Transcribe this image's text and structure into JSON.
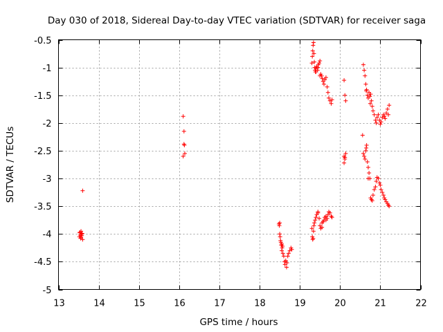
{
  "chart_data": {
    "type": "scatter",
    "title": "Day 030 of 2018, Sidereal Day-to-day VTEC variation (SDTVAR) for receiver saga",
    "xlabel": "GPS time / hours",
    "ylabel": "SDTVAR / TECUs",
    "xlim": [
      13,
      22
    ],
    "ylim": [
      -5,
      -0.5
    ],
    "xticks": [
      13,
      14,
      15,
      16,
      17,
      18,
      19,
      20,
      21,
      22
    ],
    "yticks": [
      -5,
      -4.5,
      -4,
      -3.5,
      -3,
      -2.5,
      -2,
      -1.5,
      -1,
      -0.5
    ],
    "xtick_labels": [
      "13",
      "14",
      "15",
      "16",
      "17",
      "18",
      "19",
      "20",
      "21",
      "22"
    ],
    "ytick_labels": [
      "-5",
      "-4.5",
      "-4",
      "-3.5",
      "-3",
      "-2.5",
      "-2",
      "-1.5",
      "-1",
      "-0.5"
    ],
    "grid": true,
    "marker": "+",
    "marker_color": "#ff0000",
    "series": [
      {
        "name": "SDTVAR",
        "x": [
          13.52,
          13.53,
          13.54,
          13.55,
          13.56,
          13.57,
          13.58,
          13.6,
          13.53,
          13.56,
          13.59,
          13.6,
          16.1,
          16.12,
          16.13,
          16.14,
          16.1,
          16.12,
          18.48,
          18.49,
          18.5,
          18.51,
          18.52,
          18.53,
          18.54,
          18.55,
          18.56,
          18.57,
          18.58,
          18.6,
          18.62,
          18.63,
          18.65,
          18.67,
          18.68,
          18.7,
          18.72,
          18.75,
          18.78,
          18.8,
          18.5,
          18.55,
          19.3,
          19.31,
          19.32,
          19.33,
          19.34,
          19.35,
          19.36,
          19.37,
          19.38,
          19.39,
          19.4,
          19.42,
          19.44,
          19.46,
          19.48,
          19.5,
          19.52,
          19.54,
          19.56,
          19.58,
          19.6,
          19.62,
          19.65,
          19.68,
          19.7,
          19.72,
          19.75,
          19.78,
          19.8,
          19.4,
          19.45,
          19.5,
          19.3,
          19.31,
          19.32,
          19.33,
          19.34,
          19.35,
          19.36,
          19.38,
          19.4,
          19.42,
          19.45,
          19.48,
          19.5,
          19.52,
          19.55,
          19.58,
          19.6,
          19.62,
          19.65,
          19.68,
          19.7,
          19.72,
          19.75,
          19.78,
          19.8,
          19.45,
          19.55,
          19.65,
          20.1,
          20.12,
          20.14,
          20.1,
          20.12,
          20.14,
          20.1,
          20.12,
          20.58,
          20.6,
          20.62,
          20.64,
          20.66,
          20.68,
          20.7,
          20.72,
          20.74,
          20.76,
          20.78,
          20.8,
          20.82,
          20.85,
          20.88,
          20.9,
          20.92,
          20.95,
          20.98,
          21.0,
          21.02,
          21.05,
          21.08,
          21.1,
          21.12,
          21.15,
          21.18,
          21.2,
          21.22,
          20.65,
          20.75,
          20.56,
          20.58,
          20.6,
          20.62,
          20.64,
          20.66,
          20.68,
          20.7,
          20.72,
          20.74,
          20.76,
          20.78,
          20.8,
          20.82,
          20.85,
          20.88,
          20.9,
          20.92,
          20.95,
          20.98,
          21.0,
          21.02,
          21.05,
          21.08,
          21.1,
          21.12,
          21.15,
          21.18,
          21.2,
          21.22,
          20.65,
          20.7
        ],
        "y": [
          -4.05,
          -3.98,
          -4.02,
          -4.08,
          -3.95,
          -4.0,
          -4.03,
          -4.1,
          -3.97,
          -4.06,
          -3.99,
          -3.22,
          -1.88,
          -2.15,
          -2.4,
          -2.55,
          -2.6,
          -2.38,
          -3.82,
          -3.85,
          -4.0,
          -4.05,
          -4.12,
          -4.15,
          -4.2,
          -4.3,
          -4.25,
          -4.22,
          -4.35,
          -4.4,
          -4.5,
          -4.55,
          -4.48,
          -4.6,
          -4.52,
          -4.4,
          -4.35,
          -4.3,
          -4.25,
          -4.28,
          -3.8,
          -4.18,
          -0.92,
          -0.8,
          -0.7,
          -0.6,
          -0.55,
          -0.75,
          -0.9,
          -1.0,
          -1.05,
          -1.08,
          -1.02,
          -0.98,
          -1.05,
          -0.95,
          -0.92,
          -0.88,
          -1.12,
          -1.15,
          -1.2,
          -1.25,
          -1.3,
          -1.22,
          -1.18,
          -1.35,
          -1.45,
          -1.55,
          -1.6,
          -1.65,
          -1.58,
          -1.08,
          -1.0,
          -1.15,
          -3.9,
          -4.05,
          -4.1,
          -4.08,
          -3.95,
          -3.85,
          -3.8,
          -3.75,
          -3.7,
          -3.65,
          -3.6,
          -3.72,
          -3.85,
          -3.9,
          -3.8,
          -3.78,
          -3.75,
          -3.7,
          -3.68,
          -3.72,
          -3.65,
          -3.6,
          -3.62,
          -3.68,
          -3.7,
          -3.62,
          -3.88,
          -3.75,
          -1.23,
          -1.5,
          -1.6,
          -2.6,
          -2.65,
          -2.55,
          -2.72,
          -2.62,
          -0.95,
          -1.05,
          -1.15,
          -1.3,
          -1.4,
          -1.5,
          -1.55,
          -1.45,
          -1.52,
          -1.48,
          -1.6,
          -1.7,
          -1.78,
          -1.85,
          -1.95,
          -2.0,
          -1.9,
          -1.85,
          -1.95,
          -2.02,
          -1.98,
          -1.9,
          -1.85,
          -1.88,
          -1.92,
          -1.82,
          -1.75,
          -1.85,
          -1.68,
          -1.42,
          -1.65,
          -2.22,
          -2.55,
          -2.6,
          -2.65,
          -2.5,
          -2.4,
          -2.7,
          -2.8,
          -2.9,
          -3.0,
          -3.35,
          -3.38,
          -3.4,
          -3.3,
          -3.2,
          -3.15,
          -3.05,
          -2.98,
          -3.0,
          -3.08,
          -3.12,
          -3.2,
          -3.25,
          -3.3,
          -3.35,
          -3.38,
          -3.42,
          -3.45,
          -3.48,
          -3.5,
          -2.45,
          -3.0
        ]
      }
    ]
  }
}
